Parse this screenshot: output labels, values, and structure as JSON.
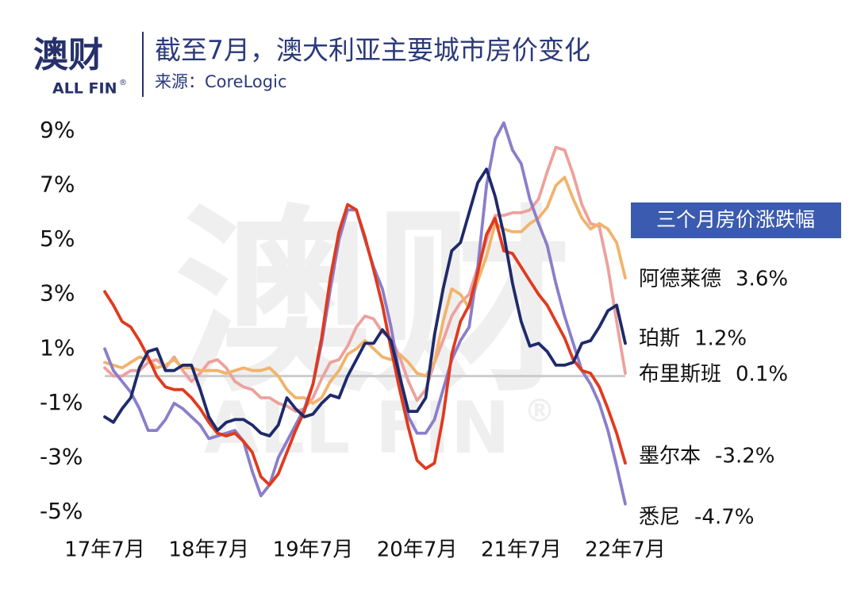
{
  "logo": {
    "text": "澳财",
    "sub": "ALL FIN",
    "mark": "®"
  },
  "watermark": {
    "text": "澳财",
    "sub": "ALL FIN",
    "mark": "®"
  },
  "chart_data": {
    "type": "line",
    "title": "截至7月，澳大利亚主要城市房价变化",
    "subtitle": "来源：CoreLogic",
    "legend_title": "三个月房价涨跌幅",
    "categories": [
      "17年7月",
      null,
      null,
      null,
      null,
      null,
      null,
      null,
      null,
      null,
      null,
      null,
      "18年7月",
      null,
      null,
      null,
      null,
      null,
      null,
      null,
      null,
      null,
      null,
      null,
      "19年7月",
      null,
      null,
      null,
      null,
      null,
      null,
      null,
      null,
      null,
      null,
      null,
      "20年7月",
      null,
      null,
      null,
      null,
      null,
      null,
      null,
      null,
      null,
      null,
      null,
      "21年7月",
      null,
      null,
      null,
      null,
      null,
      null,
      null,
      null,
      null,
      null,
      null,
      "22年7月"
    ],
    "ylim": [
      -5,
      9
    ],
    "yticks": [
      {
        "value": 9,
        "label": "9%"
      },
      {
        "value": 7,
        "label": "7%"
      },
      {
        "value": 5,
        "label": "5%"
      },
      {
        "value": 3,
        "label": "3%"
      },
      {
        "value": 1,
        "label": "1%"
      },
      {
        "value": -1,
        "label": "-1%"
      },
      {
        "value": -3,
        "label": "-3%"
      },
      {
        "value": -5,
        "label": "-5%"
      }
    ],
    "zero_line": true,
    "series": [
      {
        "name": "阿德莱德",
        "color": "#f2b36b",
        "end_label": "3.6%",
        "values": [
          0.5,
          0.4,
          0.3,
          0.5,
          0.7,
          0.6,
          0.3,
          0.4,
          0.6,
          0.3,
          0.3,
          0.2,
          0.2,
          0.2,
          0.1,
          0.2,
          0.3,
          0.2,
          0.2,
          0.3,
          0.0,
          -0.5,
          -0.8,
          -0.8,
          -1.0,
          -0.8,
          -0.2,
          0.2,
          0.8,
          1.0,
          1.3,
          1.0,
          0.7,
          0.6,
          0.8,
          0.5,
          0.1,
          0.0,
          0.5,
          2.0,
          3.2,
          3.0,
          2.5,
          3.5,
          4.4,
          5.6,
          5.4,
          5.3,
          5.3,
          5.6,
          5.8,
          6.2,
          7.0,
          7.3,
          6.5,
          5.8,
          5.4,
          5.6,
          5.4,
          4.9,
          3.6
        ]
      },
      {
        "name": "珀斯",
        "color": "#1e2a6a",
        "end_label": "1.2%",
        "values": [
          -1.5,
          -1.7,
          -1.2,
          -0.8,
          0.3,
          0.9,
          1.0,
          0.2,
          0.2,
          0.4,
          0.4,
          -0.5,
          -1.5,
          -2.0,
          -1.7,
          -1.6,
          -1.6,
          -1.8,
          -2.1,
          -2.2,
          -1.8,
          -0.8,
          -1.2,
          -1.5,
          -1.4,
          -1.0,
          -0.7,
          -0.8,
          0.0,
          0.6,
          1.2,
          1.2,
          1.7,
          1.3,
          0.0,
          -1.3,
          -1.3,
          -0.8,
          1.5,
          3.2,
          4.6,
          4.9,
          6.0,
          7.1,
          7.6,
          6.6,
          5.2,
          3.4,
          2.0,
          1.1,
          1.2,
          0.9,
          0.4,
          0.4,
          0.5,
          1.2,
          1.3,
          1.8,
          2.4,
          2.6,
          1.2
        ]
      },
      {
        "name": "布里斯班",
        "color": "#eda19c",
        "end_label": "0.1%",
        "values": [
          0.3,
          0.0,
          0.0,
          0.2,
          0.2,
          0.5,
          0.6,
          0.3,
          0.7,
          0.2,
          -0.2,
          0.1,
          0.5,
          0.6,
          0.3,
          -0.2,
          -0.4,
          -0.5,
          -0.8,
          -0.8,
          -1.0,
          -1.1,
          -1.3,
          -1.2,
          -0.8,
          -0.1,
          0.5,
          0.6,
          1.1,
          1.8,
          2.2,
          2.1,
          1.6,
          1.4,
          0.7,
          -0.2,
          -0.9,
          -0.5,
          0.5,
          1.3,
          2.2,
          2.7,
          3.0,
          4.0,
          5.0,
          5.9,
          5.9,
          6.0,
          6.0,
          6.1,
          6.5,
          7.5,
          8.4,
          8.3,
          7.4,
          6.3,
          5.6,
          5.5,
          4.0,
          2.0,
          0.1
        ]
      },
      {
        "name": "墨尔本",
        "color": "#e03a1e",
        "end_label": "-3.2%",
        "values": [
          3.1,
          2.6,
          2.0,
          1.8,
          1.3,
          0.7,
          0.0,
          -0.4,
          -0.5,
          -0.5,
          -0.8,
          -1.2,
          -1.7,
          -2.1,
          -2.2,
          -2.1,
          -2.4,
          -2.8,
          -3.7,
          -4.0,
          -3.6,
          -2.8,
          -2.0,
          -1.3,
          -0.3,
          1.4,
          3.6,
          5.3,
          6.3,
          6.1,
          5.1,
          3.9,
          2.6,
          1.0,
          -0.5,
          -1.9,
          -3.1,
          -3.4,
          -3.2,
          -1.5,
          0.8,
          2.0,
          2.6,
          3.8,
          5.2,
          5.8,
          4.6,
          4.5,
          4.0,
          3.5,
          3.0,
          2.6,
          2.0,
          1.4,
          0.6,
          0.2,
          0.1,
          -0.4,
          -1.2,
          -2.1,
          -3.2
        ]
      },
      {
        "name": "悉尼",
        "color": "#8a7ecb",
        "end_label": "-4.7%",
        "values": [
          1.0,
          0.2,
          -0.2,
          -0.6,
          -1.2,
          -2.0,
          -2.0,
          -1.6,
          -1.0,
          -1.2,
          -1.5,
          -1.8,
          -2.3,
          -2.2,
          -2.1,
          -2.0,
          -2.4,
          -3.5,
          -4.4,
          -4.0,
          -3.0,
          -2.4,
          -1.8,
          -1.2,
          -0.3,
          1.2,
          3.2,
          5.0,
          6.1,
          6.1,
          5.0,
          4.0,
          3.2,
          1.8,
          0.0,
          -1.5,
          -2.1,
          -2.1,
          -1.6,
          -0.5,
          0.6,
          1.3,
          1.8,
          4.0,
          7.0,
          8.7,
          9.3,
          8.3,
          7.8,
          6.5,
          5.6,
          4.8,
          3.4,
          2.2,
          1.2,
          0.2,
          -0.3,
          -1.0,
          -2.0,
          -3.3,
          -4.7
        ]
      }
    ]
  }
}
